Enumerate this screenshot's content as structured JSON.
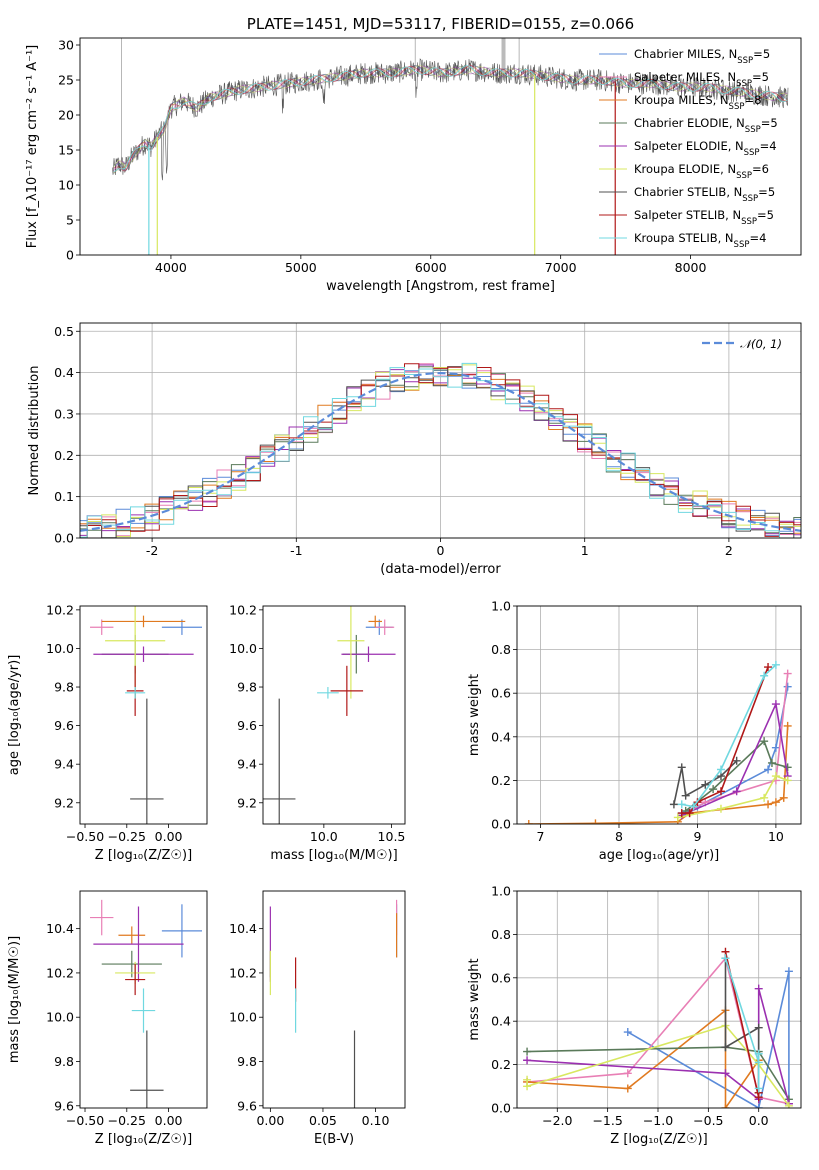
{
  "colors": {
    "Chabrier MILES": "#5b8bd9",
    "Salpeter MILES": "#e87fb5",
    "Kroupa MILES": "#e07a20",
    "Chabrier ELODIE": "#5a7a5a",
    "Salpeter ELODIE": "#9b30b0",
    "Kroupa ELODIE": "#d8e860",
    "Chabrier STELIB": "#505050",
    "Salpeter STELIB": "#b01818",
    "Kroupa STELIB": "#70d8e0"
  },
  "models": [
    "Chabrier MILES",
    "Salpeter MILES",
    "Kroupa MILES",
    "Chabrier ELODIE",
    "Salpeter ELODIE",
    "Kroupa ELODIE",
    "Chabrier STELIB",
    "Salpeter STELIB",
    "Kroupa STELIB"
  ],
  "chart_data": [
    {
      "id": "spectrum",
      "type": "line",
      "title": "PLATE=1451, MJD=53117, FIBERID=0155, z=0.066",
      "xlabel": "wavelength [Angstrom, rest frame]",
      "ylabel": "Flux [f_λ10⁻¹⁷ erg cm⁻² s⁻¹ A⁻¹]",
      "xlim": [
        3300,
        8850
      ],
      "ylim": [
        0,
        31
      ],
      "xticks": [
        4000,
        5000,
        6000,
        7000,
        8000
      ],
      "yticks": [
        0,
        5,
        10,
        15,
        20,
        25,
        30
      ],
      "data_wavelength": [
        3550,
        3600,
        3650,
        3700,
        3750,
        3800,
        3850,
        3900,
        3950,
        4000,
        4100,
        4200,
        4300,
        4400,
        4500,
        4700,
        4900,
        5100,
        5300,
        5500,
        5700,
        5900,
        6100,
        6300,
        6500,
        6700,
        6900,
        7100,
        7300,
        7500,
        7700,
        7900,
        8100,
        8300,
        8500,
        8700
      ],
      "data_flux": [
        12,
        13,
        12.5,
        14,
        15,
        16,
        15.5,
        17,
        18,
        21,
        22,
        21,
        22.5,
        23,
        23.5,
        24,
        24.5,
        25,
        25.5,
        26,
        26,
        26.5,
        26,
        26.5,
        26,
        26,
        25.5,
        25,
        25,
        24.5,
        24.5,
        24,
        24,
        23.5,
        23,
        22.5
      ],
      "legend": [
        {
          "text": "Chabrier MILES, N",
          "n": "5"
        },
        {
          "text": "Salpeter MILES, N",
          "n": "5"
        },
        {
          "text": "Kroupa MILES, N",
          "n": "8"
        },
        {
          "text": "Chabrier ELODIE, N",
          "n": "5"
        },
        {
          "text": "Salpeter ELODIE, N",
          "n": "4"
        },
        {
          "text": "Kroupa ELODIE, N",
          "n": "6"
        },
        {
          "text": "Chabrier STELIB, N",
          "n": "5"
        },
        {
          "text": "Salpeter STELIB, N",
          "n": "5"
        },
        {
          "text": "Kroupa STELIB, N",
          "n": "4"
        }
      ],
      "legend_sub": "SSP",
      "legend_placement": "top-right",
      "grid": false
    },
    {
      "id": "residuals",
      "type": "line",
      "xlabel": "(data-model)/error",
      "ylabel": "Normed distribution",
      "xlim": [
        -2.5,
        2.5
      ],
      "ylim": [
        0,
        0.52
      ],
      "xticks": [
        -2,
        -1,
        0,
        1,
        2
      ],
      "yticks": [
        0.0,
        0.1,
        0.2,
        0.3,
        0.4,
        0.5
      ],
      "bin_width": 0.1,
      "reference_curve": "N(0,1)",
      "legend": "𝒩(0, 1)",
      "grid": true
    },
    {
      "id": "age-vs-Z",
      "type": "scatter",
      "xlabel": "Z [log₁₀(Z/Z☉)]",
      "ylabel": "age  [log₁₀(age/yr)]",
      "xlim": [
        -0.53,
        0.23
      ],
      "ylim": [
        9.09,
        10.22
      ],
      "xticks": [
        -0.5,
        -0.25,
        0.0
      ],
      "xtick_labels": [
        "−0.50",
        "−0.25",
        "0.00"
      ],
      "yticks": [
        9.2,
        9.4,
        9.6,
        9.8,
        10.0,
        10.2
      ],
      "points": [
        {
          "model": "Chabrier MILES",
          "x": 0.08,
          "xerr": 0.12,
          "y": 10.11,
          "yerr": 0.04
        },
        {
          "model": "Salpeter MILES",
          "x": -0.4,
          "xerr": 0.07,
          "y": 10.11,
          "yerr": 0.04
        },
        {
          "model": "Kroupa MILES",
          "x": -0.15,
          "xerr": 0.25,
          "y": 10.14,
          "yerr": 0.03
        },
        {
          "model": "Chabrier ELODIE",
          "x": -0.2,
          "xerr": 0.2,
          "y": 9.97,
          "yerr": 0.1
        },
        {
          "model": "Salpeter ELODIE",
          "x": -0.15,
          "xerr": 0.3,
          "y": 9.97,
          "yerr": 0.04
        },
        {
          "model": "Kroupa ELODIE",
          "x": -0.2,
          "xerr": 0.18,
          "y": 10.04,
          "yerr": 0.3
        },
        {
          "model": "Chabrier STELIB",
          "x": -0.13,
          "xerr": 0.1,
          "y": 9.22,
          "yerr": 0.52
        },
        {
          "model": "Salpeter STELIB",
          "x": -0.2,
          "xerr": 0.05,
          "y": 9.78,
          "yerr": 0.13
        },
        {
          "model": "Kroupa STELIB",
          "x": -0.2,
          "xerr": 0.06,
          "y": 9.77,
          "yerr": 0.03
        }
      ],
      "grid": false
    },
    {
      "id": "age-vs-mass",
      "type": "scatter",
      "xlabel": "mass [log₁₀(M/M☉)]",
      "xlim": [
        9.55,
        10.6
      ],
      "ylim": [
        9.09,
        10.22
      ],
      "xticks": [
        10.0,
        10.5
      ],
      "xtick_labels": [
        "10.0",
        "10.5"
      ],
      "yticks": [
        9.2,
        9.4,
        9.6,
        9.8,
        10.0,
        10.2
      ],
      "points": [
        {
          "model": "Chabrier MILES",
          "x": 10.41,
          "xerr": 0.1,
          "y": 10.11,
          "yerr": 0.04
        },
        {
          "model": "Salpeter MILES",
          "x": 10.45,
          "xerr": 0.07,
          "y": 10.11,
          "yerr": 0.04
        },
        {
          "model": "Kroupa MILES",
          "x": 10.38,
          "xerr": 0.05,
          "y": 10.14,
          "yerr": 0.03
        },
        {
          "model": "Chabrier ELODIE",
          "x": 10.24,
          "xerr": 0.1,
          "y": 9.97,
          "yerr": 0.1
        },
        {
          "model": "Salpeter ELODIE",
          "x": 10.33,
          "xerr": 0.2,
          "y": 9.97,
          "yerr": 0.04
        },
        {
          "model": "Kroupa ELODIE",
          "x": 10.2,
          "xerr": 0.1,
          "y": 10.04,
          "yerr": 0.3
        },
        {
          "model": "Chabrier STELIB",
          "x": 9.67,
          "xerr": 0.12,
          "y": 9.22,
          "yerr": 0.52
        },
        {
          "model": "Salpeter STELIB",
          "x": 10.17,
          "xerr": 0.12,
          "y": 9.78,
          "yerr": 0.13
        },
        {
          "model": "Kroupa STELIB",
          "x": 10.03,
          "xerr": 0.08,
          "y": 9.77,
          "yerr": 0.03
        }
      ],
      "grid": false
    },
    {
      "id": "weight-vs-age",
      "type": "line",
      "xlabel": "age  [log₁₀(age/yr)]",
      "ylabel": "mass weight",
      "xlim": [
        6.7,
        10.32
      ],
      "ylim": [
        0,
        1
      ],
      "xticks": [
        7,
        8,
        9,
        10
      ],
      "yticks": [
        0.0,
        0.2,
        0.4,
        0.6,
        0.8,
        1.0
      ],
      "series": [
        {
          "model": "Chabrier MILES",
          "x": [
            8.8,
            9.0,
            9.9,
            10.0,
            10.15
          ],
          "y": [
            0.05,
            0.08,
            0.25,
            0.35,
            0.63
          ]
        },
        {
          "model": "Salpeter MILES",
          "x": [
            8.85,
            9.1,
            10.0,
            10.15
          ],
          "y": [
            0.05,
            0.1,
            0.2,
            0.69
          ]
        },
        {
          "model": "Kroupa MILES",
          "x": [
            6.85,
            7.7,
            8.75,
            8.9,
            9.9,
            10.0,
            10.1,
            10.15
          ],
          "y": [
            0.0,
            0.003,
            0.01,
            0.05,
            0.09,
            0.1,
            0.12,
            0.45
          ]
        },
        {
          "model": "Chabrier ELODIE",
          "x": [
            8.85,
            9.2,
            9.85,
            9.95,
            10.15
          ],
          "y": [
            0.06,
            0.16,
            0.38,
            0.28,
            0.26
          ]
        },
        {
          "model": "Salpeter ELODIE",
          "x": [
            8.8,
            9.5,
            10.0,
            10.15
          ],
          "y": [
            0.04,
            0.15,
            0.55,
            0.22
          ]
        },
        {
          "model": "Kroupa ELODIE",
          "x": [
            8.75,
            9.3,
            9.85,
            10.0,
            10.15
          ],
          "y": [
            0.03,
            0.07,
            0.12,
            0.22,
            0.2
          ]
        },
        {
          "model": "Chabrier STELIB",
          "x": [
            8.7,
            8.8,
            8.85,
            9.1,
            9.3,
            9.5
          ],
          "y": [
            0.09,
            0.26,
            0.13,
            0.18,
            0.22,
            0.29
          ]
        },
        {
          "model": "Salpeter STELIB",
          "x": [
            8.8,
            8.9,
            9.0,
            9.3,
            9.9
          ],
          "y": [
            0.05,
            0.05,
            0.1,
            0.15,
            0.72
          ]
        },
        {
          "model": "Kroupa STELIB",
          "x": [
            8.8,
            8.95,
            9.3,
            9.85,
            10.0
          ],
          "y": [
            0.09,
            0.08,
            0.25,
            0.68,
            0.73
          ]
        }
      ],
      "grid": true
    },
    {
      "id": "mass-vs-Z",
      "type": "scatter",
      "xlabel": "Z [log₁₀(Z/Z☉)]",
      "ylabel": "mass [log₁₀(M/M☉)]",
      "xlim": [
        -0.53,
        0.23
      ],
      "ylim": [
        9.59,
        10.57
      ],
      "xticks": [
        -0.5,
        -0.25,
        0.0
      ],
      "xtick_labels": [
        "−0.50",
        "−0.25",
        "0.00"
      ],
      "yticks": [
        9.6,
        9.8,
        10.0,
        10.2,
        10.4
      ],
      "points": [
        {
          "model": "Chabrier MILES",
          "x": 0.08,
          "xerr": 0.12,
          "y": 10.39,
          "yerr": 0.12
        },
        {
          "model": "Salpeter MILES",
          "x": -0.4,
          "xerr": 0.07,
          "y": 10.45,
          "yerr": 0.08
        },
        {
          "model": "Kroupa MILES",
          "x": -0.22,
          "xerr": 0.08,
          "y": 10.37,
          "yerr": 0.04
        },
        {
          "model": "Chabrier ELODIE",
          "x": -0.22,
          "xerr": 0.18,
          "y": 10.24,
          "yerr": 0.06
        },
        {
          "model": "Salpeter ELODIE",
          "x": -0.18,
          "xerr": 0.27,
          "y": 10.33,
          "yerr": 0.17
        },
        {
          "model": "Kroupa ELODIE",
          "x": -0.2,
          "xerr": 0.12,
          "y": 10.2,
          "yerr": 0.05
        },
        {
          "model": "Chabrier STELIB",
          "x": -0.13,
          "xerr": 0.1,
          "y": 9.67,
          "yerr": 0.27
        },
        {
          "model": "Salpeter STELIB",
          "x": -0.2,
          "xerr": 0.06,
          "y": 10.17,
          "yerr": 0.07
        },
        {
          "model": "Kroupa STELIB",
          "x": -0.15,
          "xerr": 0.07,
          "y": 10.03,
          "yerr": 0.1
        }
      ],
      "grid": false
    },
    {
      "id": "mass-vs-ebv",
      "type": "scatter",
      "xlabel": "E(B-V)",
      "xlim": [
        -0.007,
        0.128
      ],
      "ylim": [
        9.59,
        10.57
      ],
      "xticks": [
        0.0,
        0.05,
        0.1
      ],
      "xtick_labels": [
        "0.00",
        "0.05",
        "0.10"
      ],
      "yticks": [
        9.6,
        9.8,
        10.0,
        10.2,
        10.4
      ],
      "points": [
        {
          "model": "Chabrier MILES",
          "x": 0.12,
          "xerr": 0,
          "y": 10.39,
          "yerr": 0.12
        },
        {
          "model": "Salpeter MILES",
          "x": 0.12,
          "xerr": 0,
          "y": 10.45,
          "yerr": 0.08
        },
        {
          "model": "Kroupa MILES",
          "x": 0.12,
          "xerr": 0,
          "y": 10.37,
          "yerr": 0.1
        },
        {
          "model": "Chabrier ELODIE",
          "x": 0.0,
          "xerr": 0,
          "y": 10.24,
          "yerr": 0.06
        },
        {
          "model": "Salpeter ELODIE",
          "x": 0.0,
          "xerr": 0,
          "y": 10.33,
          "yerr": 0.17
        },
        {
          "model": "Kroupa ELODIE",
          "x": 0.0,
          "xerr": 0,
          "y": 10.2,
          "yerr": 0.1
        },
        {
          "model": "Chabrier STELIB",
          "x": 0.08,
          "xerr": 0,
          "y": 9.72,
          "yerr": 0.22
        },
        {
          "model": "Salpeter STELIB",
          "x": 0.024,
          "xerr": 0,
          "y": 10.17,
          "yerr": 0.1
        },
        {
          "model": "Kroupa STELIB",
          "x": 0.024,
          "xerr": 0,
          "y": 10.03,
          "yerr": 0.1
        }
      ],
      "grid": false
    },
    {
      "id": "weight-vs-Z",
      "type": "line",
      "xlabel": "Z [log₁₀(Z/Z☉)]",
      "ylabel": "mass weight",
      "xlim": [
        -2.4,
        0.42
      ],
      "ylim": [
        0,
        1
      ],
      "xticks": [
        -2.0,
        -1.5,
        -1.0,
        -0.5,
        0.0
      ],
      "xtick_labels": [
        "−2.0",
        "−1.5",
        "−1.0",
        "−0.5",
        "0.0"
      ],
      "yticks": [
        0.0,
        0.2,
        0.4,
        0.6,
        0.8,
        1.0
      ],
      "series": [
        {
          "model": "Chabrier MILES",
          "x": [
            -1.3,
            0.0,
            0.3,
            0.3
          ],
          "y": [
            0.35,
            0.0,
            0.63,
            0.02
          ]
        },
        {
          "model": "Salpeter MILES",
          "x": [
            -2.3,
            -1.3,
            -0.33,
            0.0,
            0.3
          ],
          "y": [
            0.12,
            0.16,
            0.69,
            0.05,
            0.02
          ]
        },
        {
          "model": "Kroupa MILES",
          "x": [
            -2.3,
            -1.3,
            -0.33,
            -0.33,
            0.0,
            0.0
          ],
          "y": [
            0.12,
            0.09,
            0.45,
            0.0,
            0.22,
            0.04
          ]
        },
        {
          "model": "Chabrier ELODIE",
          "x": [
            -2.3,
            -0.33,
            0.0,
            0.3
          ],
          "y": [
            0.26,
            0.28,
            0.26,
            0.04
          ]
        },
        {
          "model": "Salpeter ELODIE",
          "x": [
            -2.3,
            -0.33,
            0.0,
            0.0,
            0.3
          ],
          "y": [
            0.22,
            0.16,
            0.04,
            0.55,
            0.02
          ]
        },
        {
          "model": "Kroupa ELODIE",
          "x": [
            -2.3,
            -2.3,
            -0.33,
            0.0,
            0.3
          ],
          "y": [
            0.13,
            0.1,
            0.38,
            0.2,
            0.01
          ]
        },
        {
          "model": "Chabrier STELIB",
          "x": [
            -0.33,
            -0.33,
            0.0,
            0.0
          ],
          "y": [
            0.69,
            0.28,
            0.37,
            0.07
          ]
        },
        {
          "model": "Salpeter STELIB",
          "x": [
            -0.33,
            0.0,
            0.0
          ],
          "y": [
            0.72,
            0.05,
            0.07
          ]
        },
        {
          "model": "Kroupa STELIB",
          "x": [
            -0.33,
            0.0,
            0.0,
            0.0
          ],
          "y": [
            0.69,
            0.21,
            0.09,
            0.25
          ]
        }
      ],
      "grid": true
    }
  ]
}
